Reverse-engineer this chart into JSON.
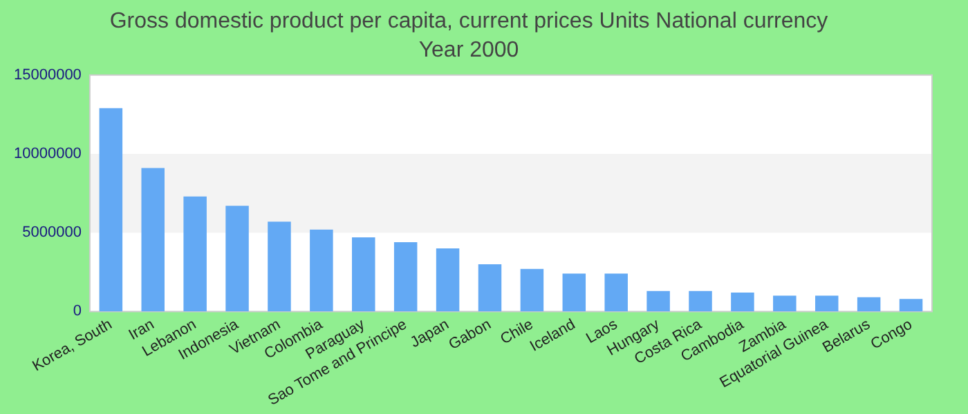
{
  "chart_data": {
    "type": "bar",
    "title": "Gross domestic product per capita, current prices Units National currency",
    "subtitle": "Year 2000",
    "categories": [
      "Korea, South",
      "Iran",
      "Lebanon",
      "Indonesia",
      "Vietnam",
      "Colombia",
      "Paraguay",
      "Sao Tome and Principe",
      "Japan",
      "Gabon",
      "Chile",
      "Iceland",
      "Laos",
      "Hungary",
      "Costa Rica",
      "Cambodia",
      "Zambia",
      "Equatorial Guinea",
      "Belarus",
      "Congo"
    ],
    "values": [
      12900000,
      9100000,
      7300000,
      6700000,
      5700000,
      5200000,
      4700000,
      4400000,
      4000000,
      3000000,
      2700000,
      2400000,
      2400000,
      1300000,
      1300000,
      1200000,
      1000000,
      1000000,
      900000,
      800000
    ],
    "color": "#63a9f4",
    "ylim": [
      0,
      15000000
    ],
    "yticks": [
      0,
      5000000,
      10000000,
      15000000
    ],
    "bands": [
      {
        "axis": "y",
        "from": 5000000,
        "to": 10000000,
        "color": "#f3f3f3"
      }
    ],
    "legend": false
  }
}
